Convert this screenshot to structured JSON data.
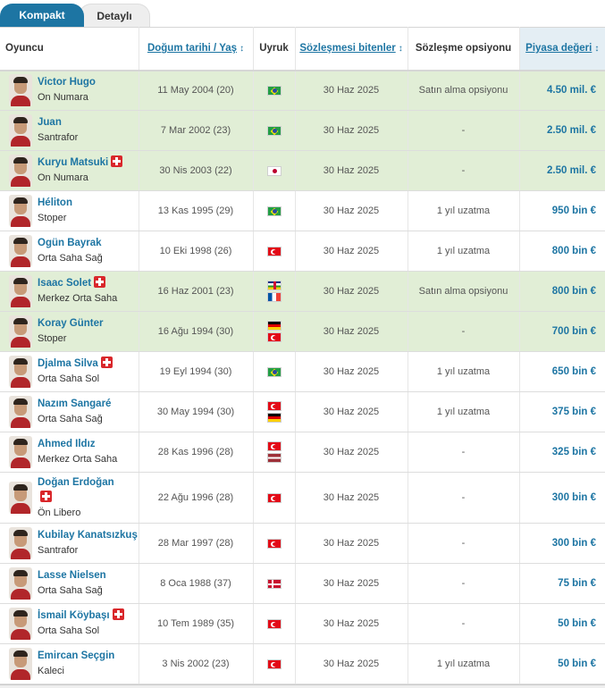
{
  "tabs": {
    "compact": "Kompakt",
    "detailed": "Detaylı"
  },
  "columns": {
    "player": "Oyuncu",
    "birth": "Doğum tarihi / Yaş",
    "nation": "Uyruk",
    "contract": "Sözleşmesi bitenler",
    "option": "Sözleşme opsiyonu",
    "value": "Piyasa değeri"
  },
  "sort_arrows": "↕",
  "injury_icon": "injury-cross",
  "accent_color": "#1d75a3",
  "highlight_color": "#e1eed6",
  "players": [
    {
      "name": "Victor Hugo",
      "position": "On Numara",
      "injured": false,
      "highlight": true,
      "birth": "11 May 2004 (20)",
      "flags": [
        "brazil-flag"
      ],
      "contract_end": "30 Haz 2025",
      "option": "Satın alma opsiyonu",
      "value": "4.50 mil. €"
    },
    {
      "name": "Juan",
      "position": "Santrafor",
      "injured": false,
      "highlight": true,
      "birth": "7 Mar 2002 (23)",
      "flags": [
        "brazil-flag"
      ],
      "contract_end": "30 Haz 2025",
      "option": "-",
      "value": "2.50 mil. €"
    },
    {
      "name": "Kuryu Matsuki",
      "position": "On Numara",
      "injured": true,
      "highlight": true,
      "birth": "30 Nis 2003 (22)",
      "flags": [
        "japan-flag"
      ],
      "contract_end": "30 Haz 2025",
      "option": "-",
      "value": "2.50 mil. €"
    },
    {
      "name": "Héliton",
      "position": "Stoper",
      "injured": false,
      "highlight": false,
      "birth": "13 Kas 1995 (29)",
      "flags": [
        "brazil-flag"
      ],
      "contract_end": "30 Haz 2025",
      "option": "1 yıl uzatma",
      "value": "950 bin €"
    },
    {
      "name": "Ogün Bayrak",
      "position": "Orta Saha Sağ",
      "injured": false,
      "highlight": false,
      "birth": "10 Eki 1998 (26)",
      "flags": [
        "turkey-flag"
      ],
      "contract_end": "30 Haz 2025",
      "option": "1 yıl uzatma",
      "value": "800 bin €"
    },
    {
      "name": "Isaac Solet",
      "position": "Merkez Orta Saha",
      "injured": true,
      "highlight": true,
      "birth": "16 Haz 2001 (23)",
      "flags": [
        "central-african-republic-flag",
        "france-flag"
      ],
      "contract_end": "30 Haz 2025",
      "option": "Satın alma opsiyonu",
      "value": "800 bin €"
    },
    {
      "name": "Koray Günter",
      "position": "Stoper",
      "injured": false,
      "highlight": true,
      "birth": "16 Ağu 1994 (30)",
      "flags": [
        "germany-flag",
        "turkey-flag"
      ],
      "contract_end": "30 Haz 2025",
      "option": "-",
      "value": "700 bin €"
    },
    {
      "name": "Djalma Silva",
      "position": "Orta Saha Sol",
      "injured": true,
      "highlight": false,
      "birth": "19 Eyl 1994 (30)",
      "flags": [
        "brazil-flag"
      ],
      "contract_end": "30 Haz 2025",
      "option": "1 yıl uzatma",
      "value": "650 bin €"
    },
    {
      "name": "Nazım Sangaré",
      "position": "Orta Saha Sağ",
      "injured": false,
      "highlight": false,
      "birth": "30 May 1994 (30)",
      "flags": [
        "turkey-flag",
        "germany-flag"
      ],
      "contract_end": "30 Haz 2025",
      "option": "1 yıl uzatma",
      "value": "375 bin €"
    },
    {
      "name": "Ahmed Ildız",
      "position": "Merkez Orta Saha",
      "injured": false,
      "highlight": false,
      "birth": "28 Kas 1996 (28)",
      "flags": [
        "turkey-flag",
        "latvia-flag"
      ],
      "contract_end": "30 Haz 2025",
      "option": "-",
      "value": "325 bin €"
    },
    {
      "name": "Doğan Erdoğan",
      "position": "Ön Libero",
      "injured": true,
      "injury_on_new_line": true,
      "highlight": false,
      "birth": "22 Ağu 1996 (28)",
      "flags": [
        "turkey-flag"
      ],
      "contract_end": "30 Haz 2025",
      "option": "-",
      "value": "300 bin €"
    },
    {
      "name": "Kubilay Kanatsızkuş",
      "position": "Santrafor",
      "injured": false,
      "highlight": false,
      "birth": "28 Mar 1997 (28)",
      "flags": [
        "turkey-flag"
      ],
      "contract_end": "30 Haz 2025",
      "option": "-",
      "value": "300 bin €"
    },
    {
      "name": "Lasse Nielsen",
      "position": "Orta Saha Sağ",
      "injured": false,
      "highlight": false,
      "birth": "8 Oca 1988 (37)",
      "flags": [
        "denmark-flag"
      ],
      "contract_end": "30 Haz 2025",
      "option": "-",
      "value": "75 bin €"
    },
    {
      "name": "İsmail Köybaşı",
      "position": "Orta Saha Sol",
      "injured": true,
      "highlight": false,
      "birth": "10 Tem 1989 (35)",
      "flags": [
        "turkey-flag"
      ],
      "contract_end": "30 Haz 2025",
      "option": "-",
      "value": "50 bin €"
    },
    {
      "name": "Emircan Seçgin",
      "position": "Kaleci",
      "injured": false,
      "highlight": false,
      "birth": "3 Nis 2002 (23)",
      "flags": [
        "turkey-flag"
      ],
      "contract_end": "30 Haz 2025",
      "option": "1 yıl uzatma",
      "value": "50 bin €"
    }
  ]
}
